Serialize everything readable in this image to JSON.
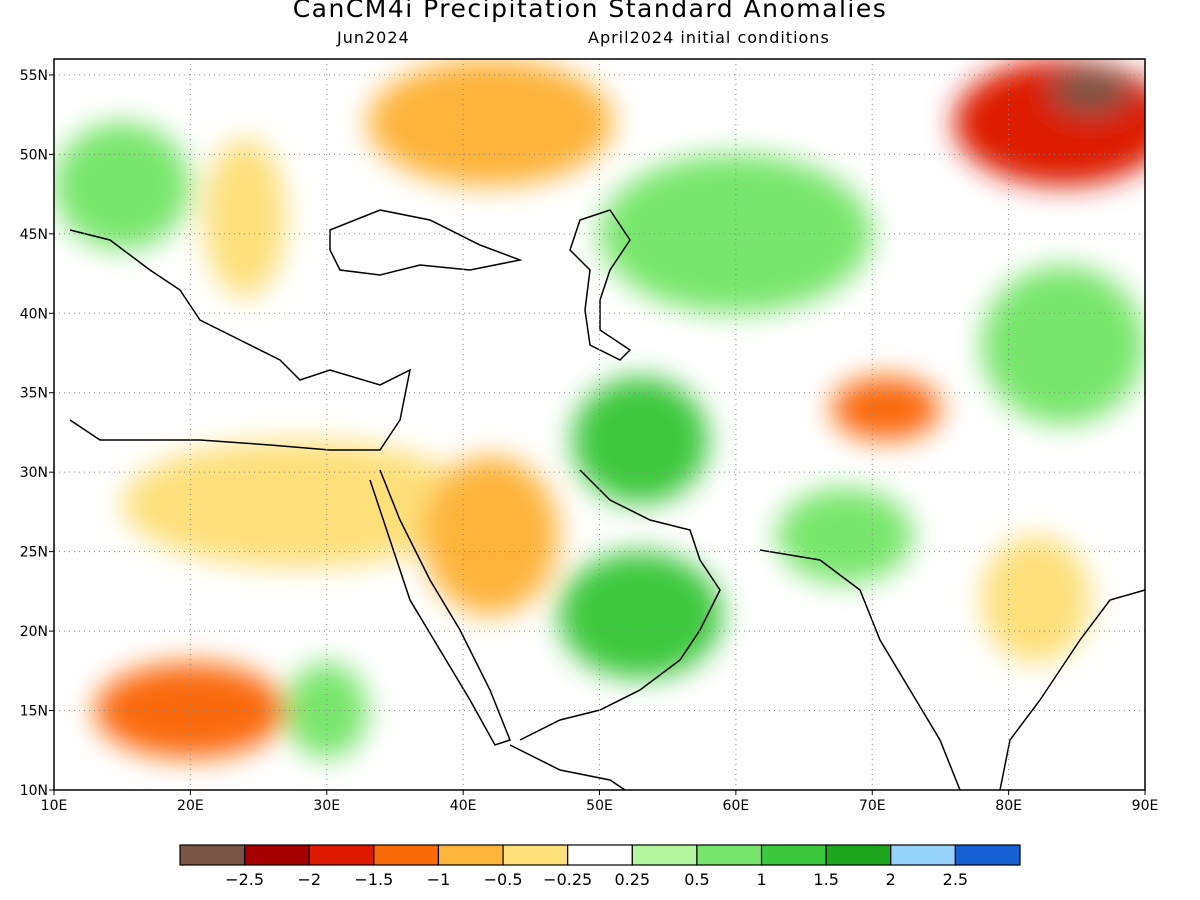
{
  "title": "CanCM4i Precipitation Standard Anomalies",
  "subtitle_left": "Jun2024",
  "subtitle_right": "April2024 initial conditions",
  "map": {
    "lon_range": [
      10,
      90
    ],
    "lat_range": [
      10,
      56
    ],
    "grid_lines": "dotted",
    "lon_ticks": [
      {
        "value": 10,
        "label": "10E"
      },
      {
        "value": 20,
        "label": "20E"
      },
      {
        "value": 30,
        "label": "30E"
      },
      {
        "value": 40,
        "label": "40E"
      },
      {
        "value": 50,
        "label": "50E"
      },
      {
        "value": 60,
        "label": "60E"
      },
      {
        "value": 70,
        "label": "70E"
      },
      {
        "value": 80,
        "label": "80E"
      },
      {
        "value": 90,
        "label": "90E"
      }
    ],
    "lat_ticks": [
      {
        "value": 10,
        "label": "10N"
      },
      {
        "value": 15,
        "label": "15N"
      },
      {
        "value": 20,
        "label": "20N"
      },
      {
        "value": 25,
        "label": "25N"
      },
      {
        "value": 30,
        "label": "30N"
      },
      {
        "value": 35,
        "label": "35N"
      },
      {
        "value": 40,
        "label": "40N"
      },
      {
        "value": 45,
        "label": "45N"
      },
      {
        "value": 50,
        "label": "50N"
      },
      {
        "value": 55,
        "label": "55N"
      }
    ],
    "regions": [
      {
        "name": "central-europe-wet",
        "category": 8,
        "lon": 15,
        "lat": 48,
        "rx": 5,
        "ry": 4
      },
      {
        "name": "western-russia-dry",
        "category": 4,
        "lon": 42,
        "lat": 52,
        "rx": 9,
        "ry": 4
      },
      {
        "name": "siberia-very-dry",
        "category": 2,
        "lon": 84,
        "lat": 52,
        "rx": 8,
        "ry": 4
      },
      {
        "name": "siberia-extreme-dry",
        "category": 0,
        "lon": 86,
        "lat": 54,
        "rx": 3,
        "ry": 1.5
      },
      {
        "name": "kazakhstan-wet",
        "category": 8,
        "lon": 60,
        "lat": 45,
        "rx": 10,
        "ry": 5
      },
      {
        "name": "balkans-dry",
        "category": 5,
        "lon": 24,
        "lat": 46,
        "rx": 3,
        "ry": 5
      },
      {
        "name": "north-africa-dry",
        "category": 5,
        "lon": 28,
        "lat": 28,
        "rx": 13,
        "ry": 4
      },
      {
        "name": "sahel-dry",
        "category": 3,
        "lon": 20,
        "lat": 15,
        "rx": 7,
        "ry": 3
      },
      {
        "name": "sudan-wet",
        "category": 8,
        "lon": 30,
        "lat": 15,
        "rx": 3,
        "ry": 3
      },
      {
        "name": "arabia-dry",
        "category": 4,
        "lon": 42,
        "lat": 26,
        "rx": 5,
        "ry": 5
      },
      {
        "name": "oman-wet",
        "category": 9,
        "lon": 53,
        "lat": 21,
        "rx": 6,
        "ry": 4
      },
      {
        "name": "iran-wet",
        "category": 9,
        "lon": 53,
        "lat": 32,
        "rx": 5,
        "ry": 4
      },
      {
        "name": "pakistan-dry",
        "category": 3,
        "lon": 71,
        "lat": 34,
        "rx": 4,
        "ry": 2
      },
      {
        "name": "indus-wet",
        "category": 8,
        "lon": 68,
        "lat": 26,
        "rx": 5,
        "ry": 3
      },
      {
        "name": "india-dry",
        "category": 5,
        "lon": 82,
        "lat": 22,
        "rx": 4,
        "ry": 4
      },
      {
        "name": "tibet-wet",
        "category": 8,
        "lon": 84,
        "lat": 38,
        "rx": 6,
        "ry": 5
      }
    ]
  },
  "colorbar": {
    "colors": [
      "#7a5545",
      "#a50000",
      "#dd1a00",
      "#fa6a08",
      "#fdb43a",
      "#fde07a",
      "#ffffff",
      "#b4f5a0",
      "#78e66c",
      "#3cc83c",
      "#1ea51e",
      "#96d2fa",
      "#1560d3"
    ],
    "labels": [
      "−2.5",
      "−2",
      "−1.5",
      "−1",
      "−0.5",
      "−0.25",
      "0.25",
      "0.5",
      "1",
      "1.5",
      "2",
      "2.5"
    ]
  }
}
